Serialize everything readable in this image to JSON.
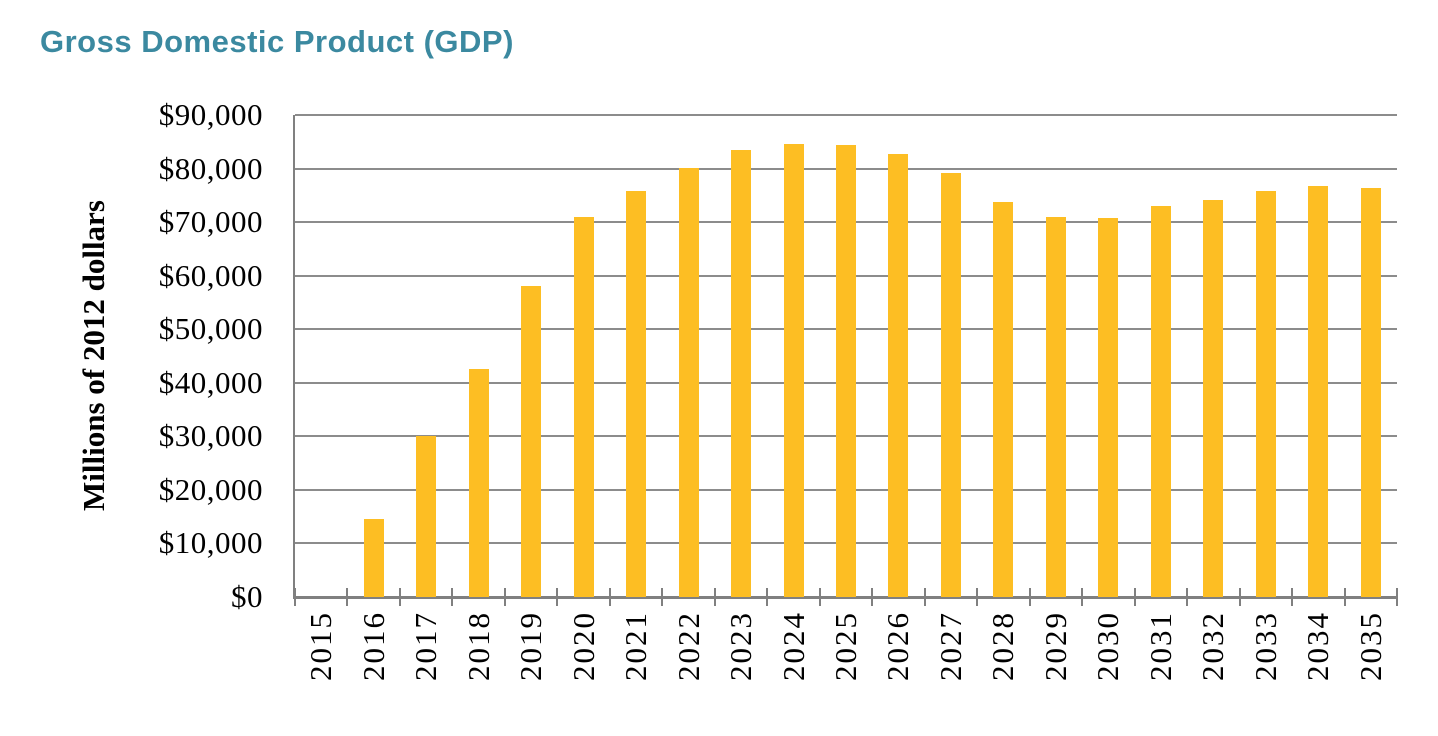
{
  "page": {
    "title": "Gross Domestic Product (GDP)"
  },
  "chart_data": {
    "type": "bar",
    "title": "Gross Domestic Product (GDP)",
    "categories": [
      "2015",
      "2016",
      "2017",
      "2018",
      "2019",
      "2020",
      "2021",
      "2022",
      "2023",
      "2024",
      "2025",
      "2026",
      "2027",
      "2028",
      "2029",
      "2030",
      "2031",
      "2032",
      "2033",
      "2034",
      "2035"
    ],
    "values": [
      0,
      14500,
      30000,
      42500,
      58000,
      70900,
      75800,
      80100,
      83500,
      84600,
      84400,
      82800,
      79100,
      73700,
      71000,
      70700,
      73000,
      74100,
      75900,
      76800,
      76300
    ],
    "xlabel": "",
    "ylabel": "Millions of 2012 dollars",
    "ylim": [
      0,
      90000
    ],
    "ytick_interval": 10000,
    "ytick_labels": [
      "$0",
      "$10,000",
      "$20,000",
      "$30,000",
      "$40,000",
      "$50,000",
      "$60,000",
      "$70,000",
      "$80,000",
      "$90,000"
    ],
    "grid": true,
    "legend": "none",
    "colors": {
      "bar": "#FDBE23",
      "title": "#3B89A0",
      "grid": "#8C8C8C",
      "axis": "#808080",
      "text": "#000000"
    }
  }
}
